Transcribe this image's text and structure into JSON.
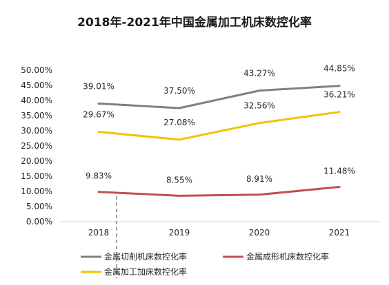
{
  "chart_data": {
    "type": "line",
    "title": "2018年-2021年中国金属加工机床数控化率",
    "categories": [
      "2018",
      "2019",
      "2020",
      "2021"
    ],
    "ylim": [
      0,
      50
    ],
    "yticks": [
      "0.00%",
      "5.00%",
      "10.00%",
      "15.00%",
      "20.00%",
      "25.00%",
      "30.00%",
      "35.00%",
      "40.00%",
      "45.00%",
      "50.00%"
    ],
    "grid": false,
    "legend_position": "bottom",
    "series": [
      {
        "name": "金属切削机床数控化率",
        "color": "#808080",
        "values": [
          39.01,
          37.5,
          43.27,
          44.85
        ],
        "labels": [
          "39.01%",
          "37.50%",
          "43.27%",
          "44.85%"
        ]
      },
      {
        "name": "金属成形机床数控化率",
        "color": "#c0504d",
        "values": [
          9.83,
          8.55,
          8.91,
          11.48
        ],
        "labels": [
          "9.83%",
          "8.55%",
          "8.91%",
          "11.48%"
        ]
      },
      {
        "name": "金属加工加床数控化率",
        "color": "#f2c200",
        "values": [
          29.67,
          27.08,
          32.56,
          36.21
        ],
        "labels": [
          "29.67%",
          "27.08%",
          "32.56%",
          "36.21%"
        ]
      }
    ]
  }
}
